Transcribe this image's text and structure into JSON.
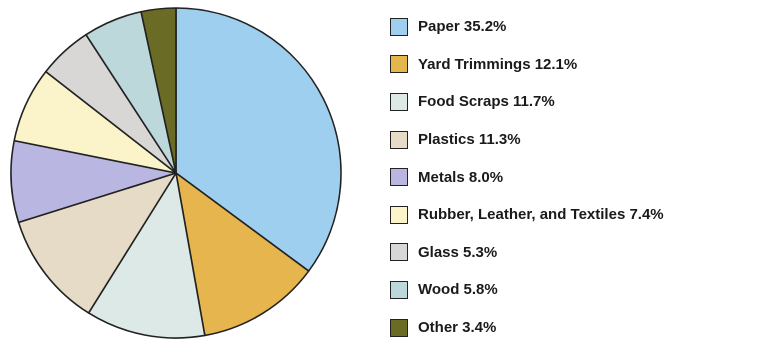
{
  "chart_data": {
    "type": "pie",
    "title": "",
    "start": "12 o'clock",
    "direction": "clockwise",
    "legend_position": "right",
    "slices": [
      {
        "label": "Paper 35.2%",
        "name": "Paper",
        "value": 35.2,
        "color": "#9fcfee"
      },
      {
        "label": "Yard Trimmings 12.1%",
        "name": "Yard Trimmings",
        "value": 12.1,
        "color": "#e7b54e"
      },
      {
        "label": "Food Scraps 11.7%",
        "name": "Food Scraps",
        "value": 11.7,
        "color": "#dde9e6"
      },
      {
        "label": "Plastics 11.3%",
        "name": "Plastics",
        "value": 11.3,
        "color": "#e6dbc6"
      },
      {
        "label": "Metals 8.0%",
        "name": "Metals",
        "value": 8.0,
        "color": "#b9b7e2"
      },
      {
        "label": "Rubber, Leather, and Textiles 7.4%",
        "name": "Rubber, Leather, and Textiles",
        "value": 7.4,
        "color": "#fbf4ca"
      },
      {
        "label": "Glass 5.3%",
        "name": "Glass",
        "value": 5.3,
        "color": "#d9d6d6"
      },
      {
        "label": "Wood 5.8%",
        "name": "Wood",
        "value": 5.8,
        "color": "#bcd8da"
      },
      {
        "label": "Other 3.4%",
        "name": "Other",
        "value": 3.4,
        "color": "#6a6c25"
      }
    ]
  }
}
